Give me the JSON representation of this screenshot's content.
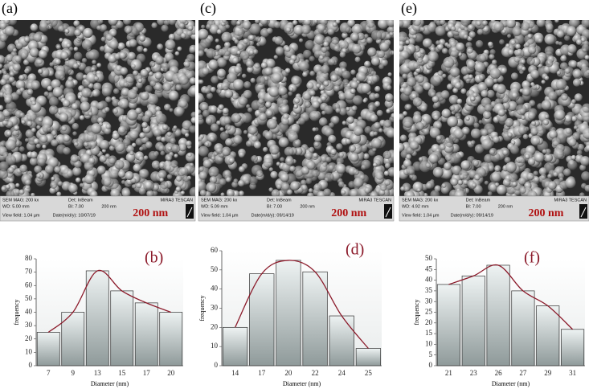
{
  "sem_images": [
    {
      "label": "(a)",
      "mag": "SEM MAG: 200 kx",
      "det": "Det: InBeam",
      "brand": "MIRA3 TESCAN",
      "wd": "WD: 5.00 mm",
      "bi": "BI: 7.00",
      "scale_small": "200 nm",
      "view_field": "View field: 1.04 µm",
      "date": "Date(m/d/y): 10/07/19",
      "scale": "200 nm"
    },
    {
      "label": "(c)",
      "mag": "SEM MAG: 200 kx",
      "det": "Det: InBeam",
      "brand": "MIRA3 TESCAN",
      "wd": "WD: 5.09 mm",
      "bi": "BI: 7.00",
      "scale_small": "200 nm",
      "view_field": "View field: 1.04 µm",
      "date": "Date(m/d/y): 09/14/19",
      "scale": "200 nm"
    },
    {
      "label": "(e)",
      "mag": "SEM MAG: 200 kx",
      "det": "Det: InBeam",
      "brand": "MIRA3 TESCAN",
      "wd": "WD: 4.92 mm",
      "bi": "BI: 7.00",
      "scale_small": "200 nm",
      "view_field": "View field: 1.04 µm",
      "date": "Date(m/d/y): 09/14/19",
      "scale": "200 nm"
    }
  ],
  "chart_data": [
    {
      "type": "bar",
      "label": "(b)",
      "x_label": "Diameter (nm)",
      "y_label": "frequency",
      "categories": [
        "7",
        "9",
        "13",
        "15",
        "17",
        "20"
      ],
      "values": [
        25,
        40,
        71,
        56,
        47,
        40
      ],
      "ylim": [
        0,
        80
      ],
      "yticks": [
        0,
        10,
        20,
        30,
        40,
        50,
        60,
        70,
        80
      ],
      "color": "#8f9a9a",
      "fit_color": "#8b1a2a"
    },
    {
      "type": "bar",
      "label": "(d)",
      "x_label": "Diameter (nm)",
      "y_label": "frequency",
      "categories": [
        "14",
        "17",
        "20",
        "22",
        "24",
        "25"
      ],
      "values": [
        20,
        48,
        55,
        49,
        26,
        9
      ],
      "ylim": [
        0,
        60
      ],
      "yticks": [
        0,
        10,
        20,
        30,
        40,
        50,
        60
      ],
      "color": "#8f9a9a",
      "fit_color": "#8b1a2a"
    },
    {
      "type": "bar",
      "label": "(f)",
      "x_label": "Diameter (nm)",
      "y_label": "frequency",
      "categories": [
        "21",
        "23",
        "26",
        "27",
        "29",
        "31"
      ],
      "values": [
        38,
        42,
        47,
        35,
        28,
        17
      ],
      "ylim": [
        0,
        50
      ],
      "yticks": [
        0,
        5,
        10,
        15,
        20,
        25,
        30,
        35,
        40,
        45,
        50
      ],
      "color": "#8f9a9a",
      "fit_color": "#8b1a2a"
    }
  ]
}
